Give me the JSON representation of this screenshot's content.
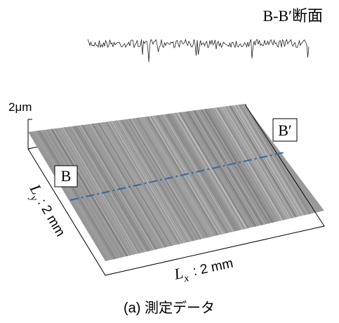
{
  "header": {
    "section_label": "B-B′断面"
  },
  "scale_label": "2μm",
  "markers": {
    "start": "B",
    "end": "B′"
  },
  "axes": {
    "y": {
      "symbol": "L",
      "sub": "y",
      "text": ": 2 mm"
    },
    "x": {
      "symbol": "L",
      "sub": "x",
      "text": ": 2 mm"
    }
  },
  "caption": "(a) 測定データ"
}
